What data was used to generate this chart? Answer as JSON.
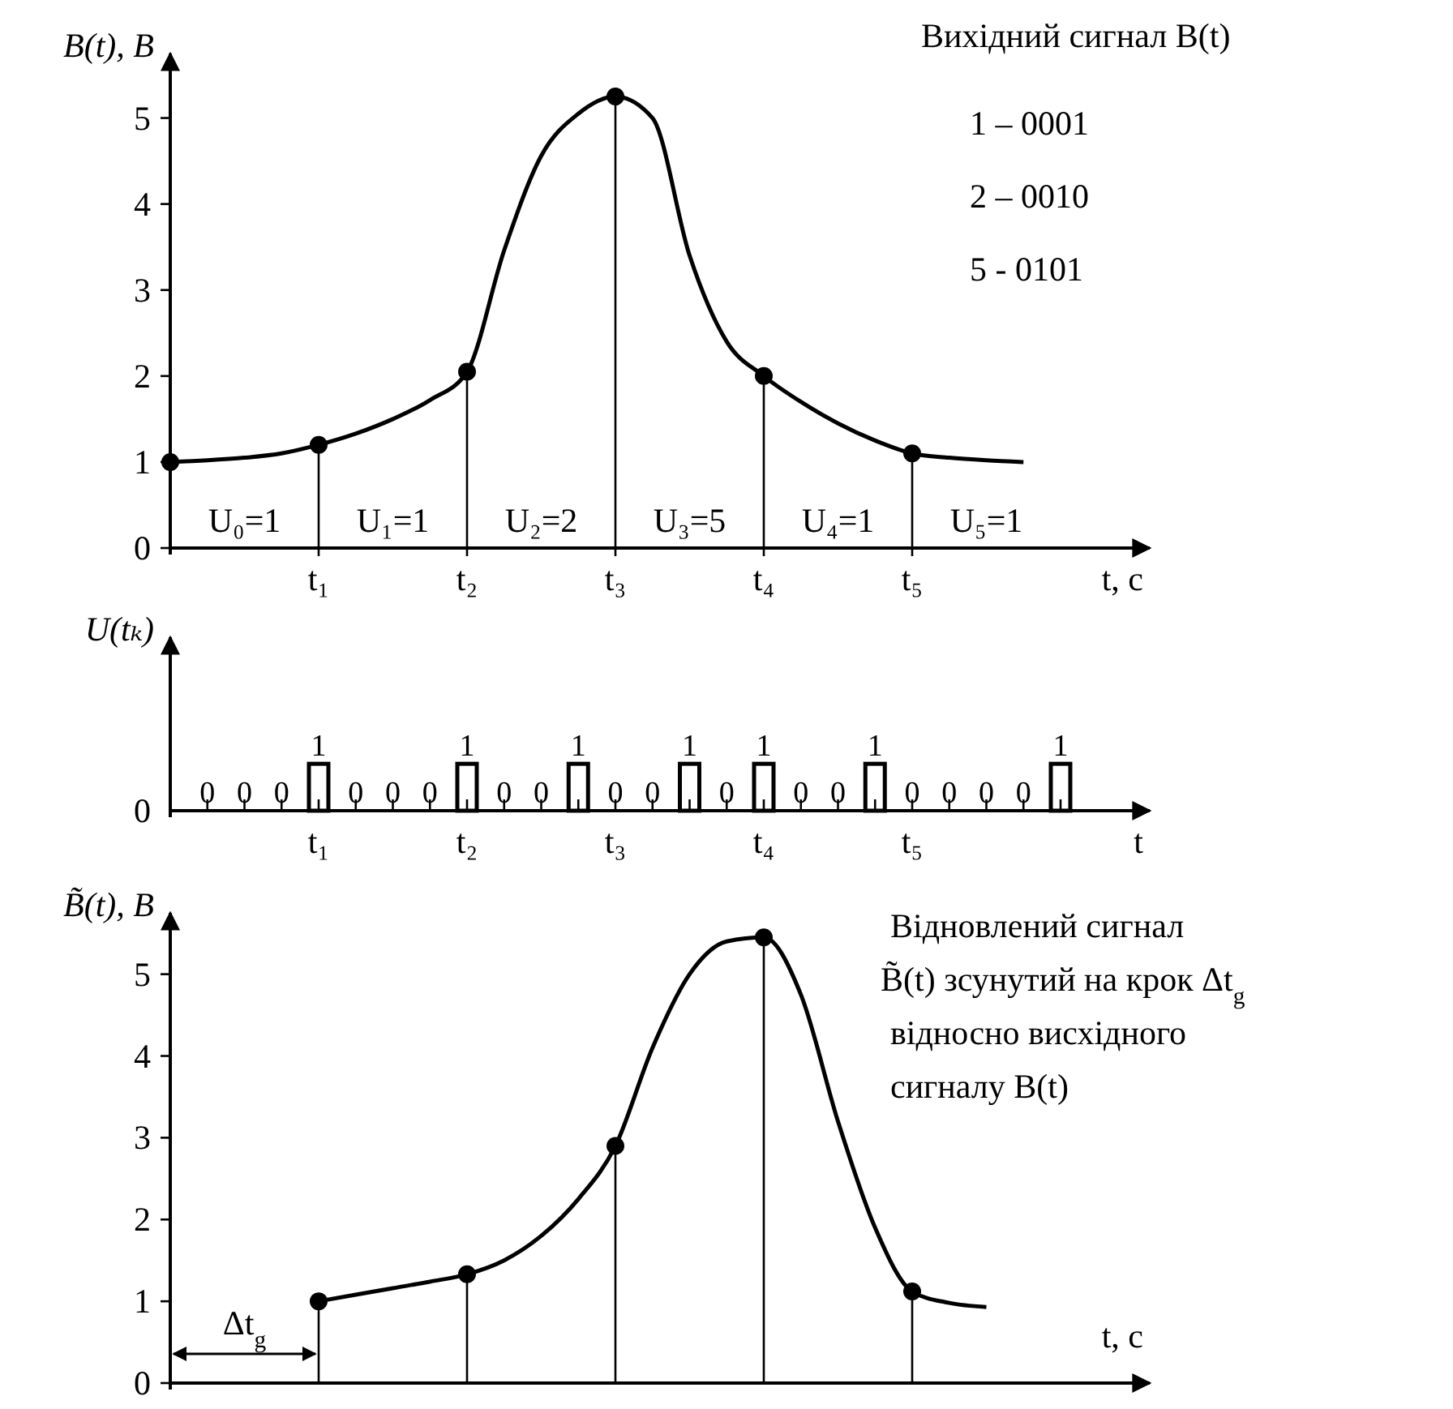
{
  "chart_data": [
    {
      "type": "line",
      "title": "Вихідний сигнал B(t)",
      "ylabel": "B(t), B",
      "xlabel": "t, c",
      "ylim": [
        0,
        5.75
      ],
      "yticks": [
        0,
        1,
        2,
        3,
        4,
        5
      ],
      "line_style": "solid",
      "categories": [
        null,
        null,
        null,
        null,
        "t₁",
        null,
        null,
        null,
        "t₂",
        null,
        null,
        null,
        "t₃",
        null,
        null,
        null,
        "t₄",
        null,
        null,
        null,
        "t₅",
        null,
        null,
        null,
        null
      ],
      "series": [
        {
          "color": "#000000",
          "marker": "none",
          "values": [
            1,
            1.02,
            1.05,
            1.1,
            1.2,
            1.33,
            1.5,
            1.72,
            2.05,
            3.46,
            4.56,
            5.05,
            5.25,
            5.0,
            3.4,
            2.4,
            2.0,
            1.7,
            1.45,
            1.25,
            1.1,
            1.05,
            1.02,
            1.0,
            null
          ]
        },
        {
          "type": "lollipop",
          "color": "#000000",
          "marker": "circle",
          "values": [
            1,
            null,
            null,
            null,
            1.2,
            null,
            null,
            null,
            2.05,
            null,
            null,
            null,
            5.25,
            null,
            null,
            null,
            2.0,
            null,
            null,
            null,
            1.1,
            null,
            null,
            null,
            null
          ]
        }
      ],
      "annotations": [
        "1 – 0001",
        "2 – 0010",
        "5 - 0101",
        "U₀=1",
        "U₁=1",
        "U₂=2",
        "U₃=5",
        "U₄=1",
        "U₅=1"
      ]
    },
    {
      "type": "bar",
      "ylabel": "U(tₖ)",
      "xlabel": "t",
      "data_labels": true,
      "categories": [
        null,
        null,
        null,
        null,
        "t₁",
        null,
        null,
        null,
        "t₂",
        null,
        null,
        null,
        "t₃",
        null,
        null,
        null,
        "t₄",
        null,
        null,
        null,
        "t₅",
        null,
        null,
        null,
        null
      ],
      "series": [
        {
          "color": "#000000",
          "values": [
            null,
            0,
            0,
            0,
            1,
            0,
            0,
            0,
            1,
            0,
            0,
            1,
            0,
            0,
            1,
            0,
            1,
            0,
            0,
            1,
            0,
            0,
            0,
            0,
            1
          ]
        }
      ],
      "annotations": [
        "0"
      ]
    },
    {
      "type": "line",
      "ylabel": "B̃(t), B",
      "xlabel": "t, c",
      "ylim": [
        0,
        5.75
      ],
      "yticks": [
        0,
        1,
        2,
        3,
        4,
        5
      ],
      "tick_labels": "y",
      "line_style": "solid",
      "categories": [
        null,
        null,
        null,
        null,
        null,
        null,
        null,
        null,
        null,
        null,
        null,
        null,
        null,
        null,
        null,
        null,
        null,
        null,
        null,
        null,
        null,
        null,
        null,
        null,
        null
      ],
      "series": [
        {
          "color": "#000000",
          "marker": "none",
          "values": [
            null,
            null,
            null,
            null,
            1,
            1.08,
            1.16,
            1.24,
            1.33,
            1.5,
            1.8,
            2.25,
            2.9,
            4.1,
            5.0,
            5.4,
            5.45,
            4.75,
            3.2,
            1.9,
            1.12,
            0.98,
            0.93,
            null,
            null
          ]
        },
        {
          "type": "lollipop",
          "color": "#000000",
          "marker": "circle",
          "values": [
            null,
            null,
            null,
            null,
            1,
            null,
            null,
            null,
            1.33,
            null,
            null,
            null,
            2.9,
            null,
            null,
            null,
            5.45,
            null,
            null,
            null,
            1.12,
            null,
            null,
            null,
            null
          ]
        }
      ],
      "annotations": [
        "Відновлений сигнал",
        "B̃(t) зсунутий на крок Δt$_{g}$",
        "відносно висхідного",
        "сигналу B(t)",
        "Δt$_{g}$"
      ]
    }
  ]
}
